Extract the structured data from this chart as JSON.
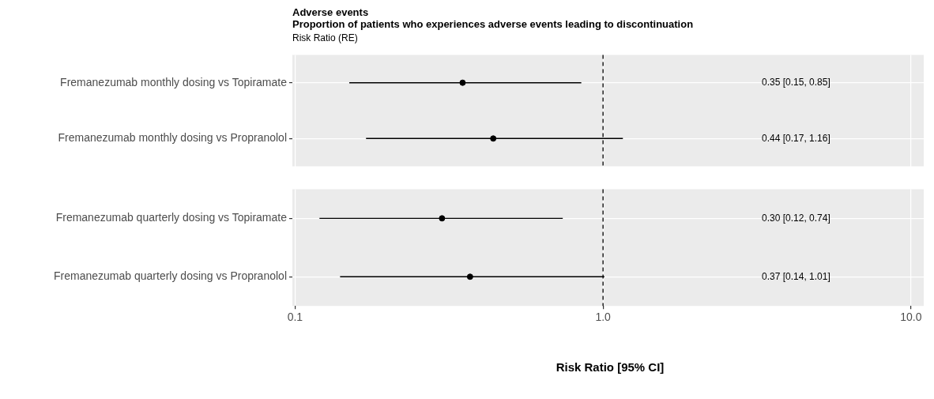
{
  "chart_data": [
    {
      "type": "scatter",
      "title": "Adverse events",
      "subtitle": "Proportion of patients who experiences adverse events leading to discontinuation",
      "annotations": [
        "Risk Ratio (RE)",
        "0.35 [0.15, 0.85]",
        "0.44 [0.17, 1.16]"
      ],
      "orientation": "horizontal",
      "categories": [
        "Fremanezumab monthly dosing vs Topiramate",
        "Fremanezumab monthly dosing vs Propranolol"
      ],
      "values": [
        0.35,
        0.44
      ],
      "errors": [
        [
          0.15,
          0.85
        ],
        [
          0.17,
          1.16
        ]
      ],
      "color": "#000000",
      "marker": "circle",
      "log": "x",
      "xlim": [
        0.098,
        11
      ],
      "xticks": [
        0.1,
        1,
        10
      ],
      "grid": true,
      "tick_labels": "y",
      "ref_lines": [
        {
          "axis": "x",
          "value": 1,
          "line_style": "dashed"
        }
      ]
    },
    {
      "type": "scatter",
      "xlabel": "Risk Ratio [95% CI]",
      "orientation": "horizontal",
      "categories": [
        "Fremanezumab quarterly dosing vs Topiramate",
        "Fremanezumab quarterly dosing vs Propranolol"
      ],
      "values": [
        0.3,
        0.37
      ],
      "errors": [
        [
          0.12,
          0.74
        ],
        [
          0.14,
          1.01
        ]
      ],
      "annotations": [
        "0.30 [0.12, 0.74]",
        "0.37 [0.14, 1.01]"
      ],
      "color": "#000000",
      "marker": "circle",
      "log": "x",
      "xlim": [
        0.098,
        11
      ],
      "xticks": [
        {
          "value": 0.1,
          "label": "0.1"
        },
        {
          "value": 1,
          "label": "1.0"
        },
        {
          "value": 10,
          "label": "10.0"
        }
      ],
      "grid": true,
      "ref_lines": [
        {
          "axis": "x",
          "value": 1,
          "line_style": "dashed"
        }
      ]
    }
  ]
}
